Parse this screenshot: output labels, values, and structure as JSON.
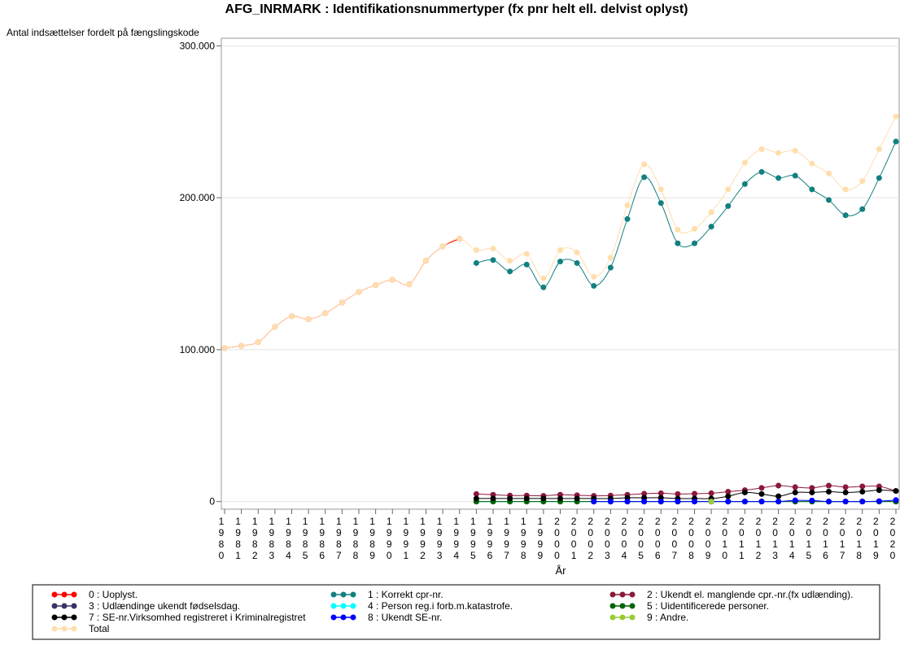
{
  "chart_data": {
    "type": "line",
    "title": "AFG_INRMARK : Identifikationsnummertyper (fx pnr helt ell. delvist oplyst)",
    "ylabel": "Antal indsættelser fordelt på fængslingskode",
    "xlabel": "År",
    "categories": [
      "1980",
      "1981",
      "1982",
      "1983",
      "1984",
      "1985",
      "1986",
      "1987",
      "1988",
      "1989",
      "1990",
      "1991",
      "1992",
      "1993",
      "1994",
      "1995",
      "1996",
      "1997",
      "1998",
      "1999",
      "2000",
      "2001",
      "2002",
      "2003",
      "2004",
      "2005",
      "2006",
      "2007",
      "2008",
      "2009",
      "2010",
      "2011",
      "2012",
      "2013",
      "2014",
      "2015",
      "2016",
      "2017",
      "2018",
      "2019",
      "2020"
    ],
    "ylim": [
      -5000,
      305000
    ],
    "yticks": [
      {
        "value": 0,
        "label": "0"
      },
      {
        "value": 100000,
        "label": "100.000"
      },
      {
        "value": 200000,
        "label": "200.000"
      },
      {
        "value": 300000,
        "label": "300.000"
      }
    ],
    "grid": true,
    "series": [
      {
        "name": "0 : Uoplyst.",
        "color": "#ff0000",
        "values": [
          101000,
          102500,
          105000,
          115000,
          122000,
          120000,
          124000,
          131000,
          138000,
          142500,
          146000,
          143000,
          158500,
          168000,
          173000,
          null,
          null,
          null,
          null,
          null,
          null,
          null,
          null,
          null,
          null,
          null,
          null,
          null,
          null,
          null,
          null,
          null,
          null,
          null,
          null,
          null,
          null,
          null,
          null,
          null,
          null
        ]
      },
      {
        "name": "1 : Korrekt cpr-nr.",
        "color": "#138080",
        "values": [
          null,
          null,
          null,
          null,
          null,
          null,
          null,
          null,
          null,
          null,
          null,
          null,
          null,
          null,
          null,
          157000,
          159000,
          151500,
          156000,
          141000,
          158000,
          157000,
          142000,
          154000,
          186000,
          213500,
          196500,
          170000,
          170000,
          181000,
          194500,
          209000,
          217000,
          213000,
          214500,
          205500,
          198500,
          188500,
          192500,
          213000,
          237000
        ]
      },
      {
        "name": "2 : Ukendt el. manglende cpr.-nr.(fx udlænding).",
        "color": "#8b1a3a",
        "values": [
          null,
          null,
          null,
          null,
          null,
          null,
          null,
          null,
          null,
          null,
          null,
          null,
          null,
          null,
          null,
          5000,
          4500,
          4000,
          4000,
          3800,
          4500,
          4200,
          3800,
          4000,
          4500,
          5200,
          5500,
          5000,
          5200,
          5500,
          6500,
          7500,
          9000,
          10500,
          9500,
          9000,
          10500,
          9500,
          10000,
          10000,
          7000
        ]
      },
      {
        "name": "3 : Udlændinge ukendt fødselsdag.",
        "color": "#3a3366",
        "values": [
          null,
          null,
          null,
          null,
          null,
          null,
          null,
          null,
          null,
          null,
          null,
          null,
          null,
          null,
          null,
          0,
          0,
          0,
          0,
          0,
          0,
          0,
          0,
          0,
          0,
          0,
          0,
          0,
          0,
          0,
          0,
          0,
          0,
          0,
          0,
          0,
          0,
          0,
          0,
          0,
          0
        ]
      },
      {
        "name": "4 : Person reg.i forb.m.katastrofe.",
        "color": "#00ffff",
        "values": [
          null,
          null,
          null,
          null,
          null,
          null,
          null,
          null,
          null,
          null,
          null,
          null,
          null,
          null,
          null,
          0,
          0,
          0,
          0,
          0,
          0,
          0,
          0,
          0,
          0,
          0,
          0,
          0,
          0,
          0,
          0,
          0,
          0,
          0,
          0,
          0,
          0,
          0,
          0,
          0,
          0
        ]
      },
      {
        "name": "5 : Uidentificerede personer.",
        "color": "#006400",
        "values": [
          null,
          null,
          null,
          null,
          null,
          null,
          null,
          null,
          null,
          null,
          null,
          null,
          null,
          null,
          null,
          0,
          0,
          0,
          0,
          0,
          0,
          0,
          0,
          0,
          0,
          0,
          0,
          0,
          0,
          0,
          0,
          0,
          0,
          0,
          0,
          0,
          0,
          0,
          0,
          0,
          0
        ]
      },
      {
        "name": "7 : SE-nr.Virksomhed registreret i Kriminalregistret",
        "color": "#000000",
        "values": [
          null,
          null,
          null,
          null,
          null,
          null,
          null,
          null,
          null,
          null,
          null,
          null,
          null,
          null,
          null,
          2000,
          2000,
          2000,
          2000,
          2000,
          2000,
          2000,
          2000,
          2000,
          2500,
          2500,
          2500,
          2000,
          2000,
          2000,
          3500,
          6000,
          5000,
          3500,
          6000,
          6000,
          6500,
          6000,
          6500,
          7500,
          7000
        ]
      },
      {
        "name": "8 : Ukendt SE-nr.",
        "color": "#0000ff",
        "values": [
          null,
          null,
          null,
          null,
          null,
          null,
          null,
          null,
          null,
          null,
          null,
          null,
          null,
          null,
          null,
          null,
          null,
          null,
          null,
          null,
          null,
          null,
          0,
          0,
          0,
          0,
          0,
          0,
          0,
          0,
          0,
          0,
          0,
          0,
          800,
          700,
          0,
          0,
          0,
          300,
          1000
        ]
      },
      {
        "name": "9 : Andre.",
        "color": "#99cc33",
        "values": [
          null,
          null,
          null,
          null,
          null,
          null,
          null,
          null,
          null,
          null,
          null,
          null,
          null,
          null,
          null,
          null,
          null,
          null,
          null,
          null,
          null,
          null,
          null,
          null,
          null,
          null,
          null,
          null,
          null,
          0,
          null,
          null,
          null,
          null,
          null,
          null,
          null,
          null,
          null,
          null,
          null
        ]
      },
      {
        "name": "Total",
        "color": "#ffdead",
        "values": [
          101000,
          102500,
          105000,
          115000,
          122000,
          120000,
          124000,
          131000,
          138000,
          142500,
          146000,
          143000,
          158500,
          168000,
          173000,
          165500,
          166500,
          158500,
          163000,
          147000,
          165500,
          164000,
          148000,
          160500,
          195000,
          222000,
          205500,
          179000,
          179500,
          190500,
          205500,
          223000,
          232000,
          229500,
          231000,
          222500,
          216000,
          205500,
          211000,
          232000,
          253500
        ]
      }
    ]
  }
}
